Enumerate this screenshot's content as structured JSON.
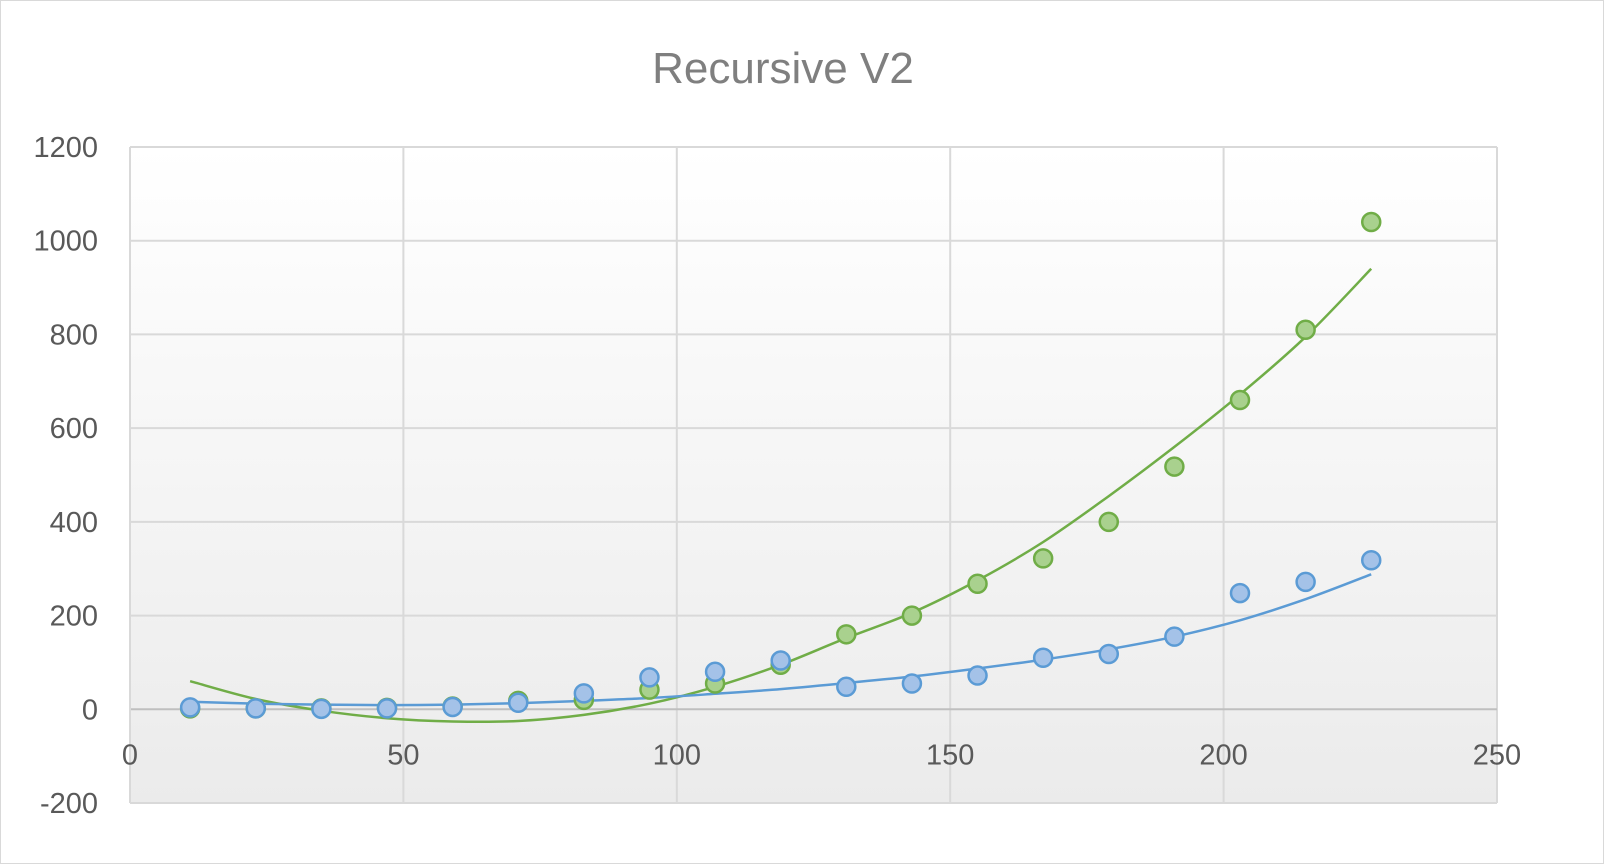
{
  "chart_data": {
    "type": "scatter",
    "title": "Recursive V2",
    "xlabel": "",
    "ylabel": "",
    "xlim": [
      0,
      250
    ],
    "ylim": [
      -200,
      1200
    ],
    "xticks": [
      "0",
      "50",
      "100",
      "150",
      "200",
      "250"
    ],
    "yticks": [
      "-200",
      "0",
      "200",
      "400",
      "600",
      "800",
      "1000",
      "1200"
    ],
    "grid": true,
    "legend": "none",
    "series": [
      {
        "color": "#70ad47",
        "marker_fill": "#a9d18e",
        "trendline": "polynomial",
        "points": [
          [
            11,
            2
          ],
          [
            23,
            2
          ],
          [
            35,
            2
          ],
          [
            47,
            3
          ],
          [
            59,
            6
          ],
          [
            71,
            18
          ],
          [
            83,
            20
          ],
          [
            95,
            42
          ],
          [
            107,
            55
          ],
          [
            119,
            95
          ],
          [
            131,
            160
          ],
          [
            143,
            200
          ],
          [
            155,
            268
          ],
          [
            167,
            322
          ],
          [
            179,
            400
          ],
          [
            191,
            518
          ],
          [
            203,
            660
          ],
          [
            215,
            810
          ],
          [
            227,
            1040
          ]
        ],
        "trend": [
          [
            11,
            60
          ],
          [
            23,
            22
          ],
          [
            35,
            -3
          ],
          [
            47,
            -19
          ],
          [
            59,
            -26
          ],
          [
            71,
            -25
          ],
          [
            83,
            -12
          ],
          [
            95,
            12
          ],
          [
            107,
            48
          ],
          [
            119,
            95
          ],
          [
            131,
            152
          ],
          [
            143,
            206
          ],
          [
            155,
            275
          ],
          [
            167,
            357
          ],
          [
            179,
            455
          ],
          [
            191,
            560
          ],
          [
            203,
            672
          ],
          [
            215,
            795
          ],
          [
            227,
            940
          ]
        ]
      },
      {
        "color": "#5b9bd5",
        "marker_fill": "#a4c2e8",
        "trendline": "polynomial",
        "points": [
          [
            11,
            4
          ],
          [
            23,
            2
          ],
          [
            35,
            1
          ],
          [
            47,
            2
          ],
          [
            59,
            5
          ],
          [
            71,
            14
          ],
          [
            83,
            34
          ],
          [
            95,
            68
          ],
          [
            107,
            80
          ],
          [
            119,
            104
          ],
          [
            131,
            48
          ],
          [
            143,
            55
          ],
          [
            155,
            72
          ],
          [
            167,
            110
          ],
          [
            179,
            118
          ],
          [
            191,
            155
          ],
          [
            203,
            248
          ],
          [
            215,
            272
          ],
          [
            227,
            318
          ]
        ],
        "trend": [
          [
            11,
            16
          ],
          [
            23,
            12
          ],
          [
            35,
            10
          ],
          [
            47,
            9
          ],
          [
            59,
            10
          ],
          [
            71,
            13
          ],
          [
            83,
            18
          ],
          [
            95,
            24
          ],
          [
            107,
            33
          ],
          [
            119,
            43
          ],
          [
            131,
            56
          ],
          [
            143,
            70
          ],
          [
            155,
            87
          ],
          [
            167,
            106
          ],
          [
            179,
            128
          ],
          [
            191,
            155
          ],
          [
            203,
            190
          ],
          [
            215,
            235
          ],
          [
            227,
            288
          ]
        ]
      }
    ]
  }
}
